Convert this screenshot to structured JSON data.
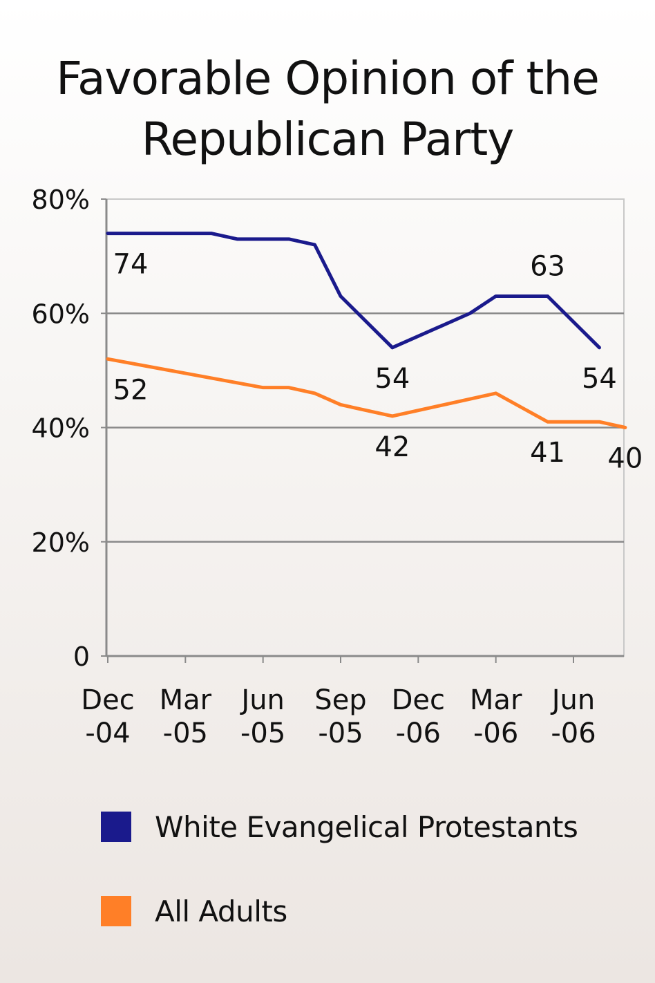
{
  "chart_data": {
    "type": "line",
    "title": [
      "Favorable Opinion of the",
      "Republican Party"
    ],
    "x_ticks": [
      {
        "label": [
          "Dec",
          "-04"
        ],
        "date": "2004-12"
      },
      {
        "label": [
          "Mar",
          "-05"
        ],
        "date": "2005-03"
      },
      {
        "label": [
          "Jun",
          "-05"
        ],
        "date": "2005-06"
      },
      {
        "label": [
          "Sep",
          "-05"
        ],
        "date": "2005-09"
      },
      {
        "label": [
          "Dec",
          "-06"
        ],
        "date": "2005-12"
      },
      {
        "label": [
          "Mar",
          "-06"
        ],
        "date": "2006-03"
      },
      {
        "label": [
          "Jun",
          "-06"
        ],
        "date": "2006-06"
      }
    ],
    "y_ticks": [
      "0",
      "20%",
      "40%",
      "60%",
      "80%"
    ],
    "ylim": [
      0,
      80
    ],
    "grid": true,
    "legend_position": "bottom",
    "series": [
      {
        "name": "White Evangelical Protestants",
        "color": "#1a1a8c",
        "points": [
          {
            "x": "2004-12",
            "y": 74
          },
          {
            "x": "2005-02",
            "y": 74
          },
          {
            "x": "2005-04",
            "y": 74
          },
          {
            "x": "2005-05",
            "y": 73
          },
          {
            "x": "2005-07",
            "y": 73
          },
          {
            "x": "2005-08",
            "y": 72
          },
          {
            "x": "2005-09",
            "y": 63
          },
          {
            "x": "2005-11",
            "y": 54
          },
          {
            "x": "2006-02",
            "y": 60
          },
          {
            "x": "2006-03",
            "y": 63
          },
          {
            "x": "2006-05",
            "y": 63
          },
          {
            "x": "2006-07",
            "y": 54
          }
        ],
        "labels": [
          {
            "x": "2004-12",
            "y": 74,
            "text": "74",
            "pos": "below"
          },
          {
            "x": "2005-11",
            "y": 54,
            "text": "54",
            "pos": "below"
          },
          {
            "x": "2006-05",
            "y": 63,
            "text": "63",
            "pos": "above"
          },
          {
            "x": "2006-07",
            "y": 54,
            "text": "54",
            "pos": "below"
          }
        ]
      },
      {
        "name": "All Adults",
        "color": "#ff7f27",
        "points": [
          {
            "x": "2004-12",
            "y": 52
          },
          {
            "x": "2005-06",
            "y": 47
          },
          {
            "x": "2005-07",
            "y": 47
          },
          {
            "x": "2005-08",
            "y": 46
          },
          {
            "x": "2005-09",
            "y": 44
          },
          {
            "x": "2005-11",
            "y": 42
          },
          {
            "x": "2006-03",
            "y": 46
          },
          {
            "x": "2006-05",
            "y": 41
          },
          {
            "x": "2006-07",
            "y": 41
          },
          {
            "x": "2006-08",
            "y": 40
          }
        ],
        "labels": [
          {
            "x": "2004-12",
            "y": 52,
            "text": "52",
            "pos": "below"
          },
          {
            "x": "2005-11",
            "y": 42,
            "text": "42",
            "pos": "below"
          },
          {
            "x": "2006-05",
            "y": 41,
            "text": "41",
            "pos": "below"
          },
          {
            "x": "2006-08",
            "y": 40,
            "text": "40",
            "pos": "below"
          }
        ]
      }
    ]
  }
}
